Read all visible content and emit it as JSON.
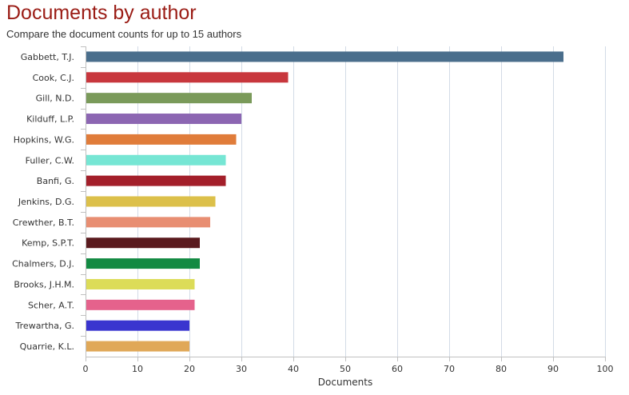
{
  "chart_data": {
    "type": "bar",
    "orientation": "horizontal",
    "title": "Documents by author",
    "subtitle": "Compare the document counts for up to 15 authors",
    "xlabel": "Documents",
    "ylabel": "",
    "xlim": [
      0,
      100
    ],
    "xticks": [
      0,
      10,
      20,
      30,
      40,
      50,
      60,
      70,
      80,
      90,
      100
    ],
    "grid": true,
    "categories": [
      "Gabbett, T.J.",
      "Cook, C.J.",
      "Gill, N.D.",
      "Kilduff, L.P.",
      "Hopkins, W.G.",
      "Fuller, C.W.",
      "Banfi, G.",
      "Jenkins, D.G.",
      "Crewther, B.T.",
      "Kemp, S.P.T.",
      "Chalmers, D.J.",
      "Brooks, J.H.M.",
      "Scher, A.T.",
      "Trewartha, G.",
      "Quarrie, K.L."
    ],
    "values": [
      92,
      39,
      32,
      30,
      29,
      27,
      27,
      25,
      24,
      22,
      22,
      21,
      21,
      20,
      20
    ],
    "colors": [
      "#4a6e8c",
      "#c8373d",
      "#7a9a5a",
      "#8c66b2",
      "#e07c3a",
      "#76e6d4",
      "#a31f2a",
      "#dcc04a",
      "#e88e72",
      "#5a1a1e",
      "#128a42",
      "#dcdc58",
      "#e5628c",
      "#3a35cf",
      "#e0a858"
    ]
  }
}
